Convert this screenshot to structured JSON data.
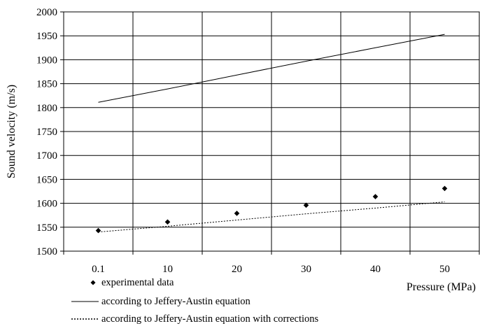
{
  "chart_data": {
    "type": "line",
    "title": "",
    "xlabel": "Pressure (MPa)",
    "ylabel": "Sound velocity (m/s)",
    "categories": [
      "0.1",
      "10",
      "20",
      "30",
      "40",
      "50"
    ],
    "ylim": [
      1500,
      2000
    ],
    "ytick_step": 50,
    "grid": true,
    "legend_position": "bottom-left",
    "series": [
      {
        "name": "experimental data",
        "style": "markers",
        "marker": "diamond",
        "values": [
          1543,
          1561,
          1579,
          1596,
          1614,
          1631
        ]
      },
      {
        "name": "according to Jeffery-Austin equation",
        "style": "solid",
        "values": [
          1811,
          1839,
          1868,
          1897,
          1925,
          1953
        ]
      },
      {
        "name": "according to Jeffery-Austin equation with corrections",
        "style": "dotted",
        "values": [
          1540,
          1552,
          1565,
          1578,
          1590,
          1603
        ]
      }
    ]
  }
}
